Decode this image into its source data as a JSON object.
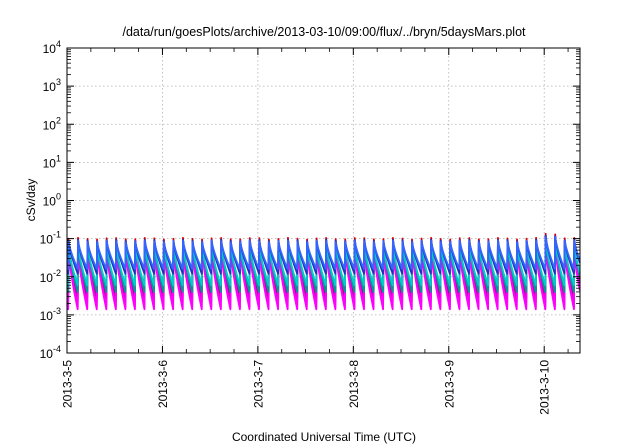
{
  "chart_data": {
    "type": "line",
    "title": "/data/run/goesPlots/archive/2013-03-10/09:00/flux/../bryn/5daysMars.plot",
    "xlabel": "Coordinated Universal Time (UTC)",
    "ylabel": "cSv/day",
    "yscale": "log",
    "ylim": [
      0.0001,
      10000
    ],
    "xlim": [
      "2013-03-05",
      "2013-03-10T09:00"
    ],
    "grid": true,
    "x_ticks": [
      "2013-3-5",
      "2013-3-6",
      "2013-3-7",
      "2013-3-8",
      "2013-3-9",
      "2013-3-10"
    ],
    "y_ticks": [
      {
        "base": "10",
        "exp": "-4"
      },
      {
        "base": "10",
        "exp": "-3"
      },
      {
        "base": "10",
        "exp": "-2"
      },
      {
        "base": "10",
        "exp": "-1"
      },
      {
        "base": "10",
        "exp": "0"
      },
      {
        "base": "10",
        "exp": "1"
      },
      {
        "base": "10",
        "exp": "2"
      },
      {
        "base": "10",
        "exp": "3"
      },
      {
        "base": "10",
        "exp": "4"
      }
    ],
    "pattern": {
      "cycles_per_day": 10,
      "peak": 0.09,
      "trough": 0.0018
    },
    "series": [
      {
        "color": "#dd0000",
        "peak": 0.1,
        "trough": 0.0028
      },
      {
        "color": "#b5009a",
        "peak": 0.085,
        "trough": 0.0022
      },
      {
        "color": "#ee00ee",
        "peak": 0.06,
        "trough": 0.0016
      },
      {
        "color": "#ff00ff",
        "peak": 0.05,
        "trough": 0.0014
      },
      {
        "color": "#009999",
        "peak": 0.07,
        "trough": 0.004
      },
      {
        "color": "#00cccc",
        "peak": 0.065,
        "trough": 0.006
      },
      {
        "color": "#2233bb",
        "peak": 0.09,
        "trough": 0.012
      },
      {
        "color": "#3366ff",
        "peak": 0.085,
        "trough": 0.016
      }
    ]
  }
}
